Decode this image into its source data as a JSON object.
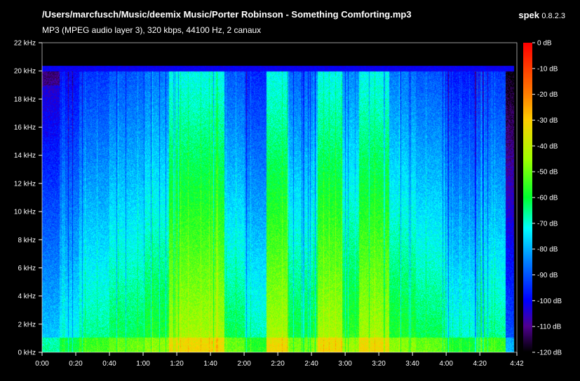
{
  "header": {
    "file_path": "/Users/marcfusch/Music/deemix Music/Porter Robinson - Something Comforting.mp3",
    "file_info": "MP3 (MPEG audio layer 3), 320 kbps, 44100 Hz, 2 canaux",
    "app_name": "spek",
    "app_version": "0.8.2.3"
  },
  "chart_data": {
    "type": "heatmap",
    "title": "/Users/marcfusch/Music/deemix Music/Porter Robinson - Something Comforting.mp3",
    "subtitle": "MP3 (MPEG audio layer 3), 320 kbps, 44100 Hz, 2 canaux",
    "x_axis": {
      "unit": "time",
      "range_seconds": [
        0,
        282
      ],
      "tick_seconds": [
        0,
        20,
        40,
        60,
        80,
        100,
        120,
        140,
        160,
        180,
        200,
        220,
        240,
        260,
        282
      ],
      "tick_labels": [
        "0:00",
        "0:20",
        "0:40",
        "1:00",
        "1:20",
        "1:40",
        "2:00",
        "2:20",
        "2:40",
        "3:00",
        "3:20",
        "3:40",
        "4:00",
        "4:20",
        "4:42"
      ]
    },
    "y_axis": {
      "unit": "kHz",
      "range": [
        0,
        22
      ],
      "tick_values": [
        0,
        2,
        4,
        6,
        8,
        10,
        12,
        14,
        16,
        18,
        20,
        22
      ],
      "tick_labels": [
        "0 kHz",
        "2 kHz",
        "4 kHz",
        "6 kHz",
        "8 kHz",
        "10 kHz",
        "12 kHz",
        "14 kHz",
        "16 kHz",
        "18 kHz",
        "20 kHz",
        "22 kHz"
      ]
    },
    "color_scale": {
      "unit": "dB",
      "range": [
        -120,
        0
      ],
      "tick_values": [
        0,
        -10,
        -20,
        -30,
        -40,
        -50,
        -60,
        -70,
        -80,
        -90,
        -100,
        -110,
        -120
      ],
      "tick_labels": [
        "0 dB",
        "-10 dB",
        "-20 dB",
        "-30 dB",
        "-40 dB",
        "-50 dB",
        "-60 dB",
        "-70 dB",
        "-80 dB",
        "-90 dB",
        "-100 dB",
        "-110 dB",
        "-120 dB"
      ],
      "stops": [
        {
          "db": 0,
          "color": "#ff0000"
        },
        {
          "db": -20,
          "color": "#ff8000"
        },
        {
          "db": -30,
          "color": "#ffd000"
        },
        {
          "db": -45,
          "color": "#a0ff00"
        },
        {
          "db": -60,
          "color": "#00ff30"
        },
        {
          "db": -72,
          "color": "#00ffff"
        },
        {
          "db": -85,
          "color": "#0080ff"
        },
        {
          "db": -100,
          "color": "#0000ff"
        },
        {
          "db": -110,
          "color": "#500090"
        },
        {
          "db": -120,
          "color": "#000000"
        }
      ]
    },
    "lowpass_cutoff_khz": 20,
    "loud_sections_seconds": [
      [
        75,
        108
      ],
      [
        133,
        146
      ],
      [
        163,
        178
      ],
      [
        188,
        206
      ]
    ]
  }
}
